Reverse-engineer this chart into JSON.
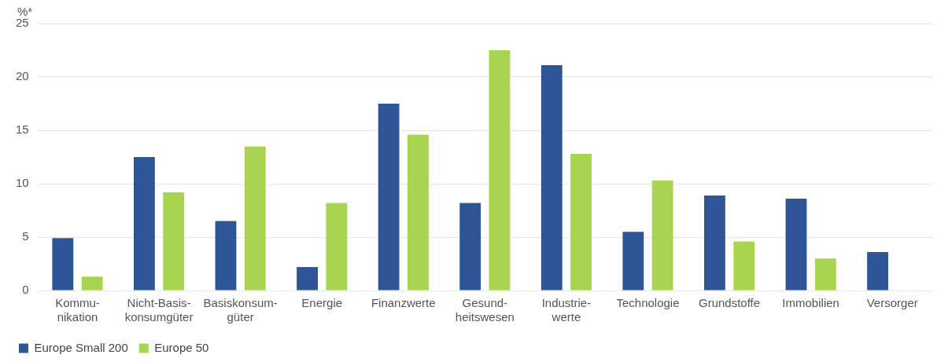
{
  "chart_data": {
    "type": "bar",
    "ylabel": "%*",
    "categories": [
      "Kommu-\nnikation",
      "Nicht-Basis-\nkonsumgüter",
      "Basiskonsum-\ngüter",
      "Energie",
      "Finanzwerte",
      "Gesund-\nheitswesen",
      "Industrie-\nwerte",
      "Technologie",
      "Grundstoffe",
      "Immobilien",
      "Versorger"
    ],
    "series": [
      {
        "name": "Europe Small 200",
        "color": "#2e5597",
        "values": [
          4.9,
          12.5,
          6.5,
          2.2,
          17.5,
          8.2,
          21.1,
          5.5,
          8.9,
          8.6,
          3.6
        ]
      },
      {
        "name": "Europe 50",
        "color": "#a8d44f",
        "values": [
          1.3,
          9.2,
          13.5,
          8.2,
          14.6,
          22.5,
          12.8,
          10.3,
          4.6,
          3.0,
          null
        ]
      }
    ],
    "ylim": [
      0,
      25
    ],
    "yticks": [
      0,
      5,
      10,
      15,
      20,
      25
    ],
    "grid": "y",
    "legend": "bottom left"
  }
}
